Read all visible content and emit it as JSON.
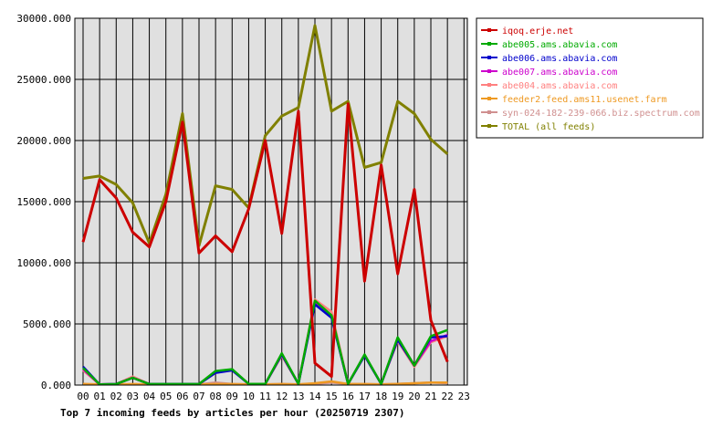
{
  "chart_data": {
    "type": "line",
    "title": "Top 7 incoming feeds by articles per hour (20250719 2307)",
    "xlabel": "",
    "ylabel": "",
    "x": [
      "00",
      "01",
      "02",
      "03",
      "04",
      "05",
      "06",
      "07",
      "08",
      "09",
      "10",
      "11",
      "12",
      "13",
      "14",
      "15",
      "16",
      "17",
      "18",
      "19",
      "20",
      "21",
      "22",
      "23"
    ],
    "y_ticks": [
      "0.000",
      "5000.000",
      "10000.000",
      "15000.000",
      "20000.000",
      "25000.000",
      "30000.000"
    ],
    "ylim": [
      0,
      30000
    ],
    "grid": true,
    "legend_position": "top-right",
    "plot_background": "#e0e0e0",
    "series": [
      {
        "name": "iqoq.erje.net",
        "color": "#cc0000",
        "values": [
          11700,
          16800,
          15300,
          12500,
          11300,
          15000,
          21500,
          10800,
          12200,
          10900,
          14400,
          20000,
          12400,
          22400,
          1800,
          700,
          23000,
          8500,
          18000,
          9100,
          16000,
          5300,
          1900,
          null
        ]
      },
      {
        "name": "abe005.ams.abavia.com",
        "color": "#00aa00",
        "values": [
          1400,
          50,
          80,
          600,
          80,
          80,
          80,
          80,
          1150,
          1300,
          100,
          100,
          2600,
          100,
          6900,
          5700,
          100,
          2500,
          100,
          3900,
          1600,
          4000,
          4500,
          null
        ]
      },
      {
        "name": "abe006.ams.abavia.com",
        "color": "#0000cc",
        "values": [
          1500,
          50,
          80,
          600,
          80,
          80,
          80,
          80,
          1000,
          1200,
          100,
          100,
          2500,
          100,
          6600,
          5500,
          100,
          2400,
          100,
          3700,
          1600,
          3900,
          4000,
          null
        ]
      },
      {
        "name": "abe007.ams.abavia.com",
        "color": "#cc00cc",
        "values": [
          1300,
          50,
          80,
          600,
          80,
          80,
          80,
          80,
          1050,
          1250,
          100,
          100,
          2550,
          100,
          6800,
          5600,
          100,
          2450,
          100,
          3800,
          1600,
          3600,
          4100,
          null
        ]
      },
      {
        "name": "abe004.ams.abavia.com",
        "color": "#ff8080",
        "values": [
          1200,
          50,
          80,
          700,
          80,
          80,
          80,
          80,
          1000,
          1250,
          100,
          100,
          2400,
          100,
          7000,
          6000,
          100,
          2400,
          100,
          3600,
          1500,
          3500,
          4000,
          null
        ]
      },
      {
        "name": "feeder2.feed.ams11.usenet.farm",
        "color": "#ee9922",
        "values": [
          100,
          50,
          50,
          80,
          50,
          50,
          50,
          50,
          80,
          80,
          50,
          50,
          80,
          50,
          150,
          300,
          80,
          80,
          50,
          100,
          150,
          200,
          200,
          null
        ]
      },
      {
        "name": "syn-024-182-239-066.biz.spectrum.com",
        "color": "#d09090",
        "values": [
          50,
          50,
          50,
          50,
          50,
          50,
          50,
          50,
          200,
          80,
          50,
          50,
          80,
          50,
          100,
          200,
          80,
          80,
          50,
          100,
          150,
          200,
          150,
          null
        ]
      },
      {
        "name": "TOTAL (all feeds)",
        "color": "#808000",
        "values": [
          16900,
          17100,
          16400,
          14900,
          11600,
          15600,
          22200,
          11400,
          16300,
          16000,
          14500,
          20400,
          22000,
          22700,
          29400,
          22400,
          23200,
          17800,
          18200,
          23200,
          22200,
          20100,
          18900,
          null
        ]
      }
    ]
  }
}
